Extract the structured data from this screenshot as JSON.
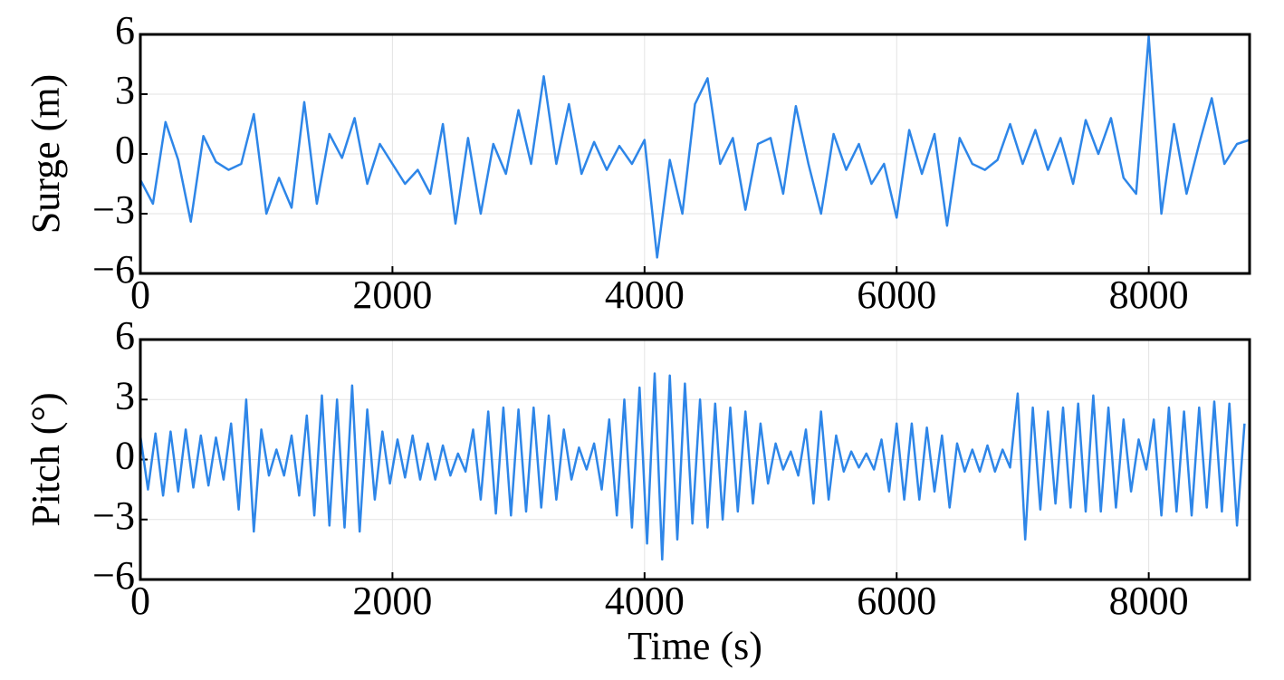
{
  "chart_data": [
    {
      "type": "line",
      "ylabel": "Surge (m)",
      "color": "#2e86e8",
      "grid": true,
      "xlim": [
        0,
        8800
      ],
      "xticks": [
        0,
        2000,
        4000,
        6000,
        8000
      ],
      "ylim": [
        -6,
        6
      ],
      "yticks": [
        {
          "value": -6,
          "label": "−6"
        },
        {
          "value": -3,
          "label": "−3"
        },
        0,
        3,
        6
      ],
      "x": [
        0,
        100,
        200,
        300,
        400,
        500,
        600,
        700,
        800,
        900,
        1000,
        1100,
        1200,
        1300,
        1400,
        1500,
        1600,
        1700,
        1800,
        1900,
        2000,
        2100,
        2200,
        2300,
        2400,
        2500,
        2600,
        2700,
        2800,
        2900,
        3000,
        3100,
        3200,
        3300,
        3400,
        3500,
        3600,
        3700,
        3800,
        3900,
        4000,
        4100,
        4200,
        4300,
        4400,
        4500,
        4600,
        4700,
        4800,
        4900,
        5000,
        5100,
        5200,
        5300,
        5400,
        5500,
        5600,
        5700,
        5800,
        5900,
        6000,
        6100,
        6200,
        6300,
        6400,
        6500,
        6600,
        6700,
        6800,
        6900,
        7000,
        7100,
        7200,
        7300,
        7400,
        7500,
        7600,
        7700,
        7800,
        7900,
        8000,
        8100,
        8200,
        8300,
        8400,
        8500,
        8600,
        8700,
        8800
      ],
      "values": [
        -1.3,
        -2.5,
        1.6,
        -0.3,
        -3.4,
        0.9,
        -0.4,
        -0.8,
        -0.5,
        2.0,
        -3.0,
        -1.2,
        -2.7,
        2.6,
        -2.5,
        1.0,
        -0.2,
        1.8,
        -1.5,
        0.5,
        -0.5,
        -1.5,
        -0.8,
        -2.0,
        1.5,
        -3.5,
        0.8,
        -3.0,
        0.5,
        -1.0,
        2.2,
        -0.5,
        3.9,
        -0.5,
        2.5,
        -1.0,
        0.6,
        -0.8,
        0.4,
        -0.5,
        0.7,
        -5.2,
        -0.3,
        -3.0,
        2.5,
        3.8,
        -0.5,
        0.8,
        -2.8,
        0.5,
        0.8,
        -2.0,
        2.4,
        -0.5,
        -3.0,
        1.0,
        -0.8,
        0.5,
        -1.5,
        -0.5,
        -3.2,
        1.2,
        -1.0,
        1.0,
        -3.6,
        0.8,
        -0.5,
        -0.8,
        -0.3,
        1.5,
        -0.5,
        1.2,
        -0.8,
        0.8,
        -1.5,
        1.7,
        0.0,
        1.8,
        -1.2,
        -2.0,
        5.9,
        -3.0,
        1.5,
        -2.0,
        0.5,
        2.8,
        -0.5,
        0.5,
        0.7
      ]
    },
    {
      "type": "line",
      "ylabel": "Pitch (°)",
      "xlabel": "Time (s)",
      "color": "#2e86e8",
      "grid": true,
      "xlim": [
        0,
        8800
      ],
      "xticks": [
        0,
        2000,
        4000,
        6000,
        8000
      ],
      "ylim": [
        -6,
        6
      ],
      "yticks": [
        {
          "value": -6,
          "label": "−6"
        },
        {
          "value": -3,
          "label": "−3"
        },
        0,
        3,
        6
      ],
      "x": [
        0,
        60,
        120,
        180,
        240,
        300,
        360,
        420,
        480,
        540,
        600,
        660,
        720,
        780,
        840,
        900,
        960,
        1020,
        1080,
        1140,
        1200,
        1260,
        1320,
        1380,
        1440,
        1500,
        1560,
        1620,
        1680,
        1740,
        1800,
        1860,
        1920,
        1980,
        2040,
        2100,
        2160,
        2220,
        2280,
        2340,
        2400,
        2460,
        2520,
        2580,
        2640,
        2700,
        2760,
        2820,
        2880,
        2940,
        3000,
        3060,
        3120,
        3180,
        3240,
        3300,
        3360,
        3420,
        3480,
        3540,
        3600,
        3660,
        3720,
        3780,
        3840,
        3900,
        3960,
        4020,
        4080,
        4140,
        4200,
        4260,
        4320,
        4380,
        4440,
        4500,
        4560,
        4620,
        4680,
        4740,
        4800,
        4860,
        4920,
        4980,
        5040,
        5100,
        5160,
        5220,
        5280,
        5340,
        5400,
        5460,
        5520,
        5580,
        5640,
        5700,
        5760,
        5820,
        5880,
        5940,
        6000,
        6060,
        6120,
        6180,
        6240,
        6300,
        6360,
        6420,
        6480,
        6540,
        6600,
        6660,
        6720,
        6780,
        6840,
        6900,
        6960,
        7020,
        7080,
        7140,
        7200,
        7260,
        7320,
        7380,
        7440,
        7500,
        7560,
        7620,
        7680,
        7740,
        7800,
        7860,
        7920,
        7980,
        8040,
        8100,
        8160,
        8220,
        8280,
        8340,
        8400,
        8460,
        8520,
        8580,
        8640,
        8700,
        8760
      ],
      "values": [
        1.2,
        -1.5,
        1.3,
        -1.8,
        1.4,
        -1.6,
        1.5,
        -1.4,
        1.2,
        -1.3,
        1.1,
        -1.0,
        1.8,
        -2.5,
        3.0,
        -3.6,
        1.5,
        -0.8,
        0.5,
        -0.8,
        1.2,
        -1.8,
        2.2,
        -2.8,
        3.2,
        -3.3,
        3.0,
        -3.4,
        3.7,
        -3.6,
        2.5,
        -2.0,
        1.4,
        -1.2,
        1.0,
        -0.9,
        1.2,
        -1.0,
        0.8,
        -1.0,
        0.7,
        -0.8,
        0.3,
        -0.6,
        1.5,
        -2.0,
        2.4,
        -2.7,
        2.6,
        -2.8,
        2.5,
        -2.6,
        2.6,
        -2.4,
        2.2,
        -2.0,
        1.5,
        -1.0,
        0.6,
        -0.5,
        0.8,
        -1.5,
        2.0,
        -2.8,
        3.0,
        -3.4,
        3.6,
        -4.2,
        4.3,
        -5.0,
        4.2,
        -4.0,
        3.8,
        -3.2,
        3.0,
        -3.4,
        2.8,
        -3.0,
        2.6,
        -2.6,
        2.4,
        -2.2,
        1.8,
        -1.2,
        0.8,
        -0.5,
        0.4,
        -0.8,
        1.5,
        -2.2,
        2.4,
        -2.0,
        1.2,
        -0.6,
        0.4,
        -0.4,
        0.3,
        -0.5,
        1.0,
        -1.6,
        1.8,
        -2.0,
        1.8,
        -2.0,
        1.6,
        -1.6,
        1.2,
        -2.4,
        0.8,
        -0.6,
        0.5,
        -0.6,
        0.7,
        -0.6,
        0.5,
        -0.4,
        3.3,
        -4.0,
        2.6,
        -2.5,
        2.4,
        -2.2,
        2.6,
        -2.4,
        2.8,
        -2.6,
        3.2,
        -2.6,
        2.6,
        -2.4,
        2.0,
        -1.6,
        1.0,
        -0.5,
        2.0,
        -2.8,
        2.6,
        -2.6,
        2.4,
        -2.8,
        2.6,
        -2.4,
        2.9,
        -2.6,
        2.8,
        -3.3,
        1.8
      ]
    }
  ]
}
